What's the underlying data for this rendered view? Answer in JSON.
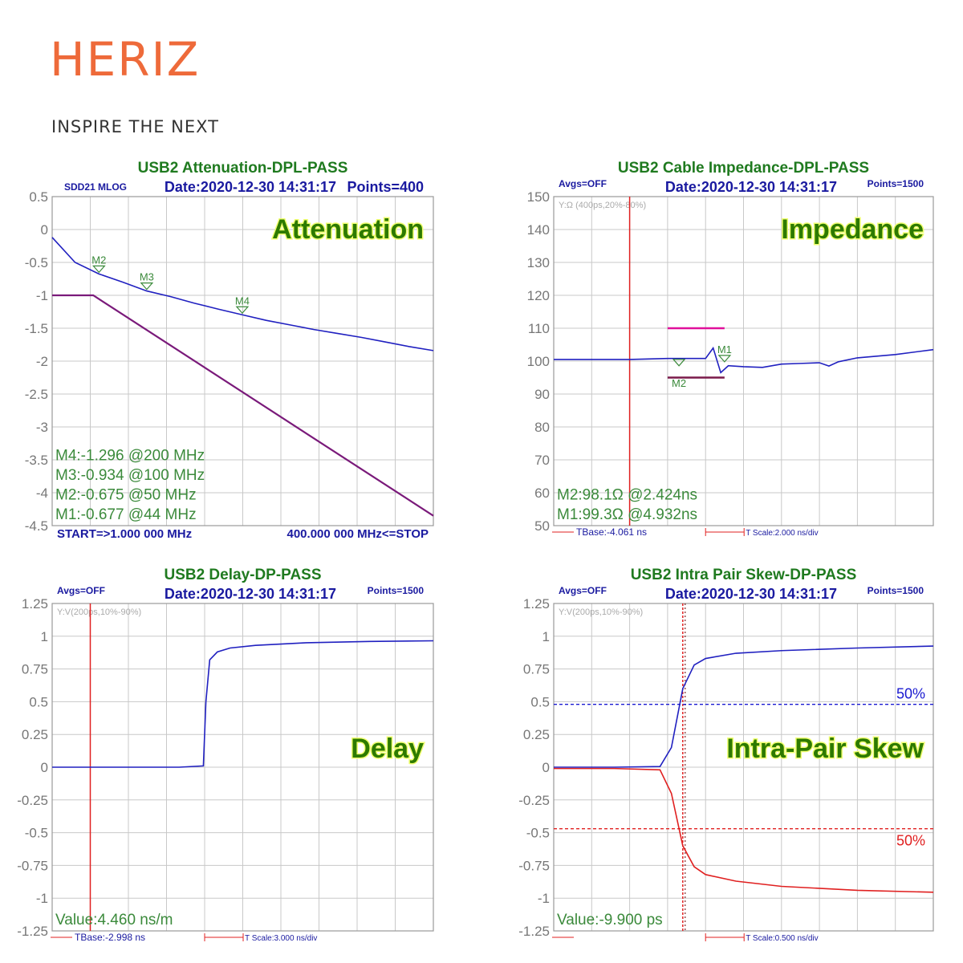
{
  "logo": {
    "brand": "HERIZ",
    "tagline": "INSPIRE THE NEXT"
  },
  "chart_data": [
    {
      "id": "attenuation",
      "type": "line",
      "title": "USB2 Attenuation-DPL-PASS",
      "header_left": "SDD21 MLOG",
      "date": "Date:2020-12-30 14:31:17",
      "points_label": "Points=400",
      "big_label": "Attenuation",
      "ylim": [
        -4.5,
        0.5
      ],
      "yticks": [
        "0.5",
        "0",
        "-0.5",
        "-1",
        "-1.5",
        "-2",
        "-2.5",
        "-3",
        "-3.5",
        "-4",
        "-4.5"
      ],
      "xlim": [
        1,
        400
      ],
      "grid": true,
      "series": [
        {
          "color": "#2020c0",
          "x": [
            1,
            25,
            50,
            75,
            100,
            125,
            150,
            175,
            200,
            225,
            250,
            275,
            300,
            325,
            350,
            375,
            400
          ],
          "y": [
            -0.12,
            -0.5,
            -0.675,
            -0.8,
            -0.934,
            -1.02,
            -1.12,
            -1.21,
            -1.296,
            -1.38,
            -1.45,
            -1.52,
            -1.58,
            -1.64,
            -1.71,
            -1.78,
            -1.84
          ]
        },
        {
          "color": "#7a1a7a",
          "x": [
            1,
            44,
            400
          ],
          "y": [
            -1.0,
            -1.0,
            -4.35
          ]
        }
      ],
      "markers": [
        {
          "label": "M2",
          "x": 50,
          "y": -0.675
        },
        {
          "label": "M3",
          "x": 100,
          "y": -0.934
        },
        {
          "label": "M4",
          "x": 200,
          "y": -1.296
        }
      ],
      "marker_readouts": [
        "M4:-1.296 @200 MHz",
        "M3:-0.934 @100 MHz",
        "M2:-0.675 @50 MHz",
        "M1:-0.677 @44 MHz"
      ],
      "bottom_left": "START=>1.000 000 MHz",
      "bottom_right": "400.000 000 MHz<=STOP"
    },
    {
      "id": "impedance",
      "type": "line",
      "title": "USB2 Cable Impedance-DPL-PASS",
      "avgs": "Avgs=OFF",
      "date": "Date:2020-12-30 14:31:17",
      "points_label": "Points=1500",
      "yaxis_note": "Y:Ω (400ps,20%-80%)",
      "big_label": "Impedance",
      "ylim": [
        50,
        150
      ],
      "yticks": [
        "150",
        "140",
        "130",
        "120",
        "110",
        "100",
        "90",
        "80",
        "70",
        "60",
        "50"
      ],
      "xlim": [
        0,
        20
      ],
      "grid": true,
      "series": [
        {
          "color": "#2020c0",
          "x": [
            0,
            2,
            4,
            6,
            8,
            8.4,
            8.8,
            9.2,
            10,
            11,
            12,
            13,
            14,
            14.5,
            15,
            16,
            18,
            20
          ],
          "y": [
            100.5,
            100.5,
            100.5,
            100.8,
            100.8,
            104,
            96.5,
            98.6,
            98.3,
            98.1,
            99.1,
            99.3,
            99.5,
            98.5,
            99.8,
            101,
            102,
            103.5
          ]
        }
      ],
      "limit_lines": [
        {
          "color": "#e0109a",
          "x": [
            6,
            9
          ],
          "y": 110
        },
        {
          "color": "#7a1a4a",
          "x": [
            6,
            9
          ],
          "y": 95
        }
      ],
      "cursor_x": 4,
      "markers": [
        {
          "label": "M1",
          "x": 9.0,
          "y": 99.3
        },
        {
          "label": "M2",
          "x": 6.6,
          "y": 98.1
        }
      ],
      "marker_readouts": [
        "M2:98.1Ω @2.424ns",
        "M1:99.3Ω @4.932ns"
      ],
      "tbase": "TBase:-4.061 ns",
      "tscale": "T Scale:2.000 ns/div"
    },
    {
      "id": "delay",
      "type": "line",
      "title": "USB2 Delay-DP-PASS",
      "avgs": "Avgs=OFF",
      "date": "Date:2020-12-30 14:31:17",
      "points_label": "Points=1500",
      "yaxis_note": "Y:V(200ps,10%-90%)",
      "big_label": "Delay",
      "ylim": [
        -1.25,
        1.25
      ],
      "yticks": [
        "1.25",
        "1",
        "0.75",
        "0.5",
        "0.25",
        "0",
        "-0.25",
        "-0.5",
        "-0.75",
        "-1",
        "-1.25"
      ],
      "xlim": [
        0,
        30
      ],
      "grid": true,
      "series": [
        {
          "color": "#2020c0",
          "x": [
            0,
            5,
            10,
            11.9,
            12.1,
            12.4,
            13,
            14,
            16,
            20,
            25,
            30
          ],
          "y": [
            0,
            0,
            0,
            0.01,
            0.5,
            0.82,
            0.88,
            0.91,
            0.93,
            0.95,
            0.96,
            0.965
          ]
        }
      ],
      "cursor_x": 3,
      "value_readout": "Value:4.460 ns/m",
      "tbase": "TBase:-2.998 ns",
      "tscale": "T Scale:3.000 ns/div"
    },
    {
      "id": "skew",
      "type": "line",
      "title": "USB2 Intra Pair Skew-DP-PASS",
      "avgs": "Avgs=OFF",
      "date": "Date:2020-12-30 14:31:17",
      "points_label": "Points=1500",
      "yaxis_note": "Y:V(200ps,10%-90%)",
      "big_label": "Intra-Pair Skew",
      "ylim": [
        -1.25,
        1.25
      ],
      "yticks": [
        "1.25",
        "1",
        "0.75",
        "0.5",
        "0.25",
        "0",
        "-0.25",
        "-0.5",
        "-0.75",
        "-1",
        "-1.25"
      ],
      "xlim": [
        0,
        5
      ],
      "grid": true,
      "series": [
        {
          "color": "#2020c0",
          "x": [
            0,
            0.8,
            1.4,
            1.55,
            1.7,
            1.85,
            2.0,
            2.4,
            3,
            4,
            5
          ],
          "y": [
            0,
            0,
            0.005,
            0.15,
            0.6,
            0.78,
            0.83,
            0.87,
            0.89,
            0.91,
            0.925
          ]
        },
        {
          "color": "#e02020",
          "x": [
            0,
            0.8,
            1.4,
            1.55,
            1.7,
            1.85,
            2.0,
            2.4,
            3,
            4,
            5
          ],
          "y": [
            -0.01,
            -0.01,
            -0.02,
            -0.2,
            -0.6,
            -0.76,
            -0.82,
            -0.87,
            -0.91,
            -0.94,
            -0.955
          ]
        }
      ],
      "threshold_lines": [
        {
          "color": "#1a1ad0",
          "y": 0.48,
          "label": "50%"
        },
        {
          "color": "#e02020",
          "y": -0.47,
          "label": "50%"
        }
      ],
      "cursor_x": 1.7,
      "value_readout": "Value:-9.900 ps",
      "tbase": "",
      "tscale": "T Scale:0.500 ns/div"
    }
  ]
}
